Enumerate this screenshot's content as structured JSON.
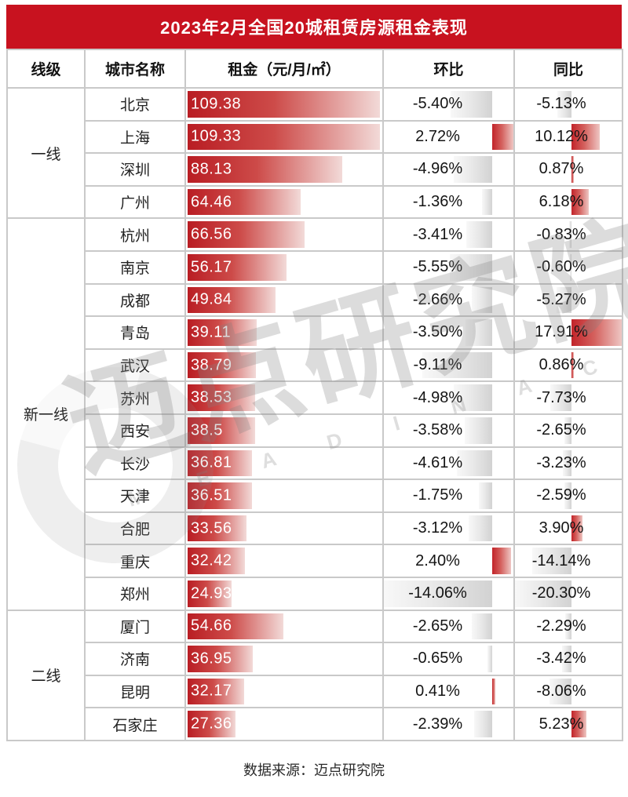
{
  "source_note": "数据来源：迈点研究院",
  "watermark": {
    "text_cn": "迈点研究院",
    "text_en": "M E A D I N  A C A D E M Y"
  },
  "colors": {
    "header_red": "#c8121f",
    "bar_red_dark": "#b91d23",
    "bar_red_light": "#f2dad8",
    "neg_bar_gray": "#d2d2d2",
    "gridline": "#c9c9c9"
  },
  "chart_data": {
    "type": "table",
    "title": "2023年2月全国20城租赁房源租金表现",
    "columns": [
      "线级",
      "城市名称",
      "租金（元/月/㎡）",
      "环比",
      "同比"
    ],
    "bar_axes": {
      "rent_max": 109.38,
      "mom": {
        "min": -14.06,
        "max": 2.72
      },
      "yoy": {
        "min": -20.3,
        "max": 17.91
      }
    },
    "groups": [
      {
        "tier": "一线",
        "rows": [
          {
            "city": "北京",
            "rent": 109.38,
            "rent_label": "109.38",
            "mom": -5.4,
            "mom_label": "-5.40%",
            "yoy": -5.13,
            "yoy_label": "-5.13%"
          },
          {
            "city": "上海",
            "rent": 109.33,
            "rent_label": "109.33",
            "mom": 2.72,
            "mom_label": "2.72%",
            "yoy": 10.12,
            "yoy_label": "10.12%"
          },
          {
            "city": "深圳",
            "rent": 88.13,
            "rent_label": "88.13",
            "mom": -4.96,
            "mom_label": "-4.96%",
            "yoy": 0.87,
            "yoy_label": "0.87%"
          },
          {
            "city": "广州",
            "rent": 64.46,
            "rent_label": "64.46",
            "mom": -1.36,
            "mom_label": "-1.36%",
            "yoy": 6.18,
            "yoy_label": "6.18%"
          }
        ]
      },
      {
        "tier": "新一线",
        "rows": [
          {
            "city": "杭州",
            "rent": 66.56,
            "rent_label": "66.56",
            "mom": -3.41,
            "mom_label": "-3.41%",
            "yoy": -0.83,
            "yoy_label": "-0.83%"
          },
          {
            "city": "南京",
            "rent": 56.17,
            "rent_label": "56.17",
            "mom": -5.55,
            "mom_label": "-5.55%",
            "yoy": -0.6,
            "yoy_label": "-0.60%"
          },
          {
            "city": "成都",
            "rent": 49.84,
            "rent_label": "49.84",
            "mom": -2.66,
            "mom_label": "-2.66%",
            "yoy": -5.27,
            "yoy_label": "-5.27%"
          },
          {
            "city": "青岛",
            "rent": 39.11,
            "rent_label": "39.11",
            "mom": -3.5,
            "mom_label": "-3.50%",
            "yoy": 17.91,
            "yoy_label": "17.91%"
          },
          {
            "city": "武汉",
            "rent": 38.79,
            "rent_label": "38.79",
            "mom": -9.11,
            "mom_label": "-9.11%",
            "yoy": 0.86,
            "yoy_label": "0.86%"
          },
          {
            "city": "苏州",
            "rent": 38.53,
            "rent_label": "38.53",
            "mom": -4.98,
            "mom_label": "-4.98%",
            "yoy": -7.73,
            "yoy_label": "-7.73%"
          },
          {
            "city": "西安",
            "rent": 38.5,
            "rent_label": "38.5",
            "mom": -3.58,
            "mom_label": "-3.58%",
            "yoy": -2.65,
            "yoy_label": "-2.65%"
          },
          {
            "city": "长沙",
            "rent": 36.81,
            "rent_label": "36.81",
            "mom": -4.61,
            "mom_label": "-4.61%",
            "yoy": -3.23,
            "yoy_label": "-3.23%"
          },
          {
            "city": "天津",
            "rent": 36.51,
            "rent_label": "36.51",
            "mom": -1.75,
            "mom_label": "-1.75%",
            "yoy": -2.59,
            "yoy_label": "-2.59%"
          },
          {
            "city": "合肥",
            "rent": 33.56,
            "rent_label": "33.56",
            "mom": -3.12,
            "mom_label": "-3.12%",
            "yoy": 3.9,
            "yoy_label": "3.90%"
          },
          {
            "city": "重庆",
            "rent": 32.42,
            "rent_label": "32.42",
            "mom": 2.4,
            "mom_label": "2.40%",
            "yoy": -14.14,
            "yoy_label": "-14.14%"
          },
          {
            "city": "郑州",
            "rent": 24.93,
            "rent_label": "24.93",
            "mom": -14.06,
            "mom_label": "-14.06%",
            "yoy": -20.3,
            "yoy_label": "-20.30%"
          }
        ]
      },
      {
        "tier": "二线",
        "rows": [
          {
            "city": "厦门",
            "rent": 54.66,
            "rent_label": "54.66",
            "mom": -2.65,
            "mom_label": "-2.65%",
            "yoy": -2.29,
            "yoy_label": "-2.29%"
          },
          {
            "city": "济南",
            "rent": 36.95,
            "rent_label": "36.95",
            "mom": -0.65,
            "mom_label": "-0.65%",
            "yoy": -3.42,
            "yoy_label": "-3.42%"
          },
          {
            "city": "昆明",
            "rent": 32.17,
            "rent_label": "32.17",
            "mom": 0.41,
            "mom_label": "0.41%",
            "yoy": -8.06,
            "yoy_label": "-8.06%"
          },
          {
            "city": "石家庄",
            "rent": 27.36,
            "rent_label": "27.36",
            "mom": -2.39,
            "mom_label": "-2.39%",
            "yoy": 5.23,
            "yoy_label": "5.23%"
          }
        ]
      }
    ]
  }
}
